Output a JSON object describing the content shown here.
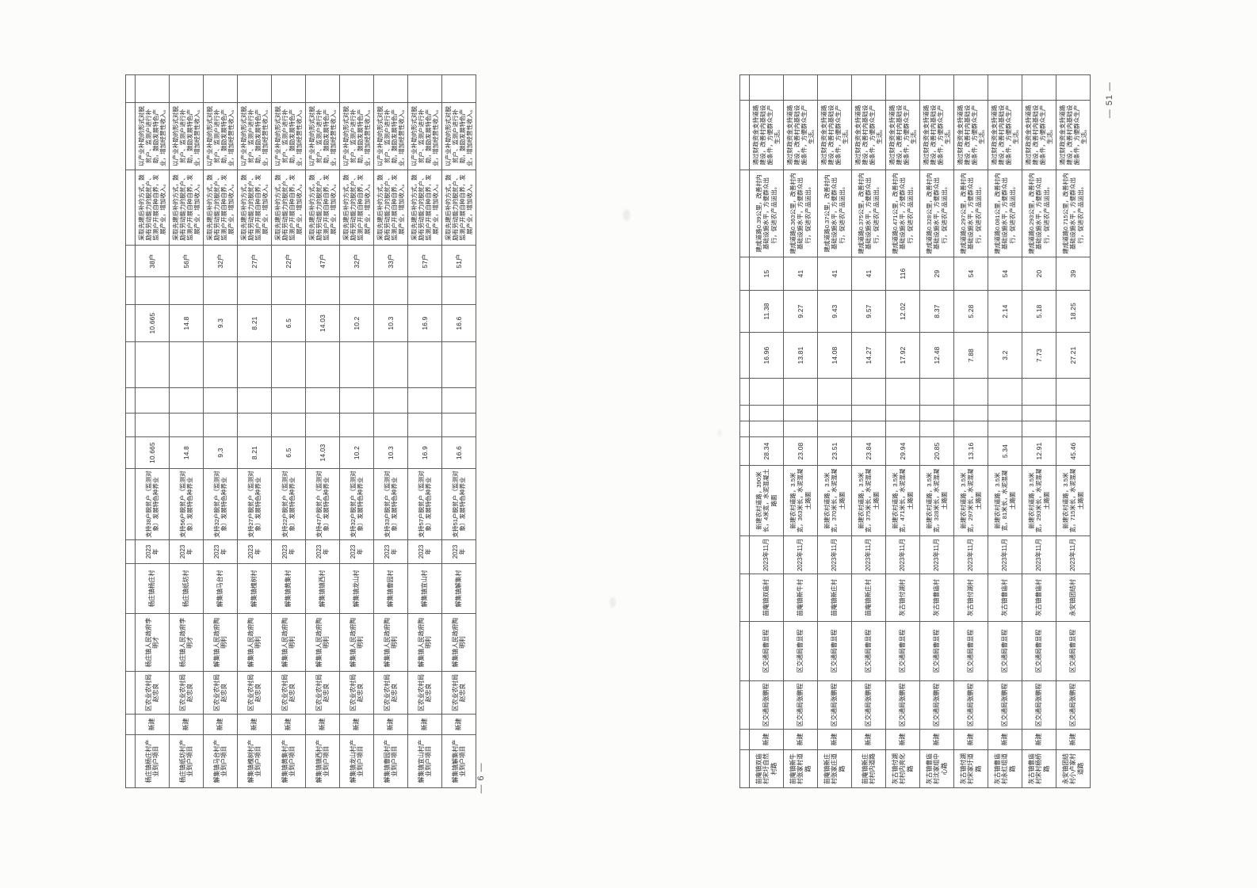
{
  "left": {
    "page_number": "— 6 —",
    "rows": [
      [
        "杨庄镇杨庄村产业到户项目",
        "新建",
        "区农业农村局赵忠良",
        "杨庄镇人民政府李明才",
        "杨庄镇杨庄村",
        "2023年",
        "支持38户脱贫户（监测对象）发展特色种养业",
        "10.665",
        "",
        "",
        "",
        "10.665",
        "",
        "38户",
        "采取先建后补的方式，鼓励有劳动能力的脱贫户、监测户开展自种自养，发展产业，增加收入。",
        "以产业补助的形式对脱贫户、监测户进行补助，鼓励发展特色产业，增加经营性收入。",
        ""
      ],
      [
        "杨庄镇纸坊村产业到户项目",
        "新建",
        "区农业农村局赵忠良",
        "杨庄镇人民政府李明才",
        "杨庄镇纸坊村",
        "2023年",
        "支持56户脱贫户（监测对象）发展特色种养业",
        "14.8",
        "",
        "",
        "",
        "14.8",
        "",
        "56户",
        "采取先建后补的方式，鼓励有劳动能力的脱贫户、监测户开展自种自养，发展产业，增加收入。",
        "以产业补助的形式对脱贫户、监测户进行补助，鼓励发展特色产业，增加经营性收入。",
        ""
      ],
      [
        "解集镇马台村产业到户项目",
        "新建",
        "区农业农村局赵忠良",
        "解集镇人民政府陶明利",
        "解集镇马台村",
        "2023年",
        "支持32户脱贫户（监测对象）发展特色种养业",
        "9.3",
        "",
        "",
        "",
        "9.3",
        "",
        "32户",
        "采取先建后补的方式，鼓励有劳动能力的脱贫户、监测户开展自种自养，发展产业，增加收入。",
        "以产业补助的形式对脱贫户、监测户进行补助，鼓励发展特色产业，增加经营性收入。",
        ""
      ],
      [
        "解集镇槐树村产业到户项目",
        "新建",
        "区农业农村局赵忠良",
        "解集镇人民政府陶明利",
        "解集镇槐树村",
        "2023年",
        "支持27户脱贫户（监测对象）发展特色种养业",
        "8.21",
        "",
        "",
        "",
        "8.21",
        "",
        "27户",
        "采取先建后补的方式，鼓励有劳动能力的脱贫户、监测户开展自种自养，发展产业，增加收入。",
        "以产业补助的形式对脱贫户、监测户进行补助，鼓励发展特色产业，增加经营性收入。",
        ""
      ],
      [
        "解集镇黄集村产业到户项目",
        "新建",
        "区农业农村局赵忠良",
        "解集镇人民政府陶明利",
        "解集镇黄集村",
        "2023年",
        "支持22户脱贫户（监测对象）发展特色种养业",
        "6.5",
        "",
        "",
        "",
        "6.5",
        "",
        "22户",
        "采取先建后补的方式，鼓励有劳动能力的脱贫户、监测户开展自种自养，发展产业，增加收入。",
        "以产业补助的形式对脱贫户、监测户进行补助，鼓励发展特色产业，增加经营性收入。",
        ""
      ],
      [
        "解集镇镇西村产业到户项目",
        "新建",
        "区农业农村局赵忠良",
        "解集镇人民政府陶明利",
        "解集镇镇西村",
        "2023年",
        "支持47户脱贫户（监测对象）发展特色种养业",
        "14.03",
        "",
        "",
        "",
        "14.03",
        "",
        "47户",
        "采取先建后补的方式，鼓励有劳动能力的脱贫户、监测户开展自种自养，发展产业，增加收入。",
        "以产业补助的形式对脱贫户、监测户进行补助，鼓励发展特色产业，增加经营性收入。",
        ""
      ],
      [
        "解集镇龙山村产业到户项目",
        "新建",
        "区农业农村局赵忠良",
        "解集镇人民政府陶明利",
        "解集镇龙山村",
        "2023年",
        "支持32户脱贫户（监测对象）发展特色种养业",
        "10.2",
        "",
        "",
        "",
        "10.2",
        "",
        "32户",
        "采取先建后补的方式，鼓励有劳动能力的脱贫户、监测户开展自种自养，发展产业，增加收入。",
        "以产业补助的形式对脱贫户、监测户进行补助，鼓励发展特色产业，增加经营性收入。",
        ""
      ],
      [
        "解集镇曹园村产业到户项目",
        "新建",
        "区农业农村局赵忠良",
        "解集镇人民政府陶明利",
        "解集镇曹园村",
        "2023年",
        "支持33户脱贫户（监测对象）发展特色种养业",
        "10.3",
        "",
        "",
        "",
        "10.3",
        "",
        "33户",
        "采取先建后补的方式，鼓励有劳动能力的脱贫户、监测户开展自种自养，发展产业，增加收入。",
        "以产业补助的形式对脱贫户、监测户进行补助，鼓励发展特色产业，增加经营性收入。",
        ""
      ],
      [
        "解集镇宜山村产业到户项目",
        "新建",
        "区农业农村局赵忠良",
        "解集镇人民政府陶明利",
        "解集镇宜山村",
        "2023年",
        "支持57户脱贫户（监测对象）发展特色种养业",
        "16.9",
        "",
        "",
        "",
        "16.9",
        "",
        "57户",
        "采取先建后补的方式，鼓励有劳动能力的脱贫户、监测户开展自种自养，发展产业，增加收入。",
        "以产业补助的形式对脱贫户、监测户进行补助，鼓励发展特色产业，增加经营性收入。",
        ""
      ],
      [
        "解集镇解集村产业到户项目",
        "新建",
        "区农业农村局赵忠良",
        "解集镇人民政府陶明利",
        "解集镇解集村",
        "2023年",
        "支持51户脱贫户（监测对象）发展特色种养业",
        "16.6",
        "",
        "",
        "",
        "16.6",
        "",
        "51户",
        "采取先建后补的方式，鼓励有劳动能力的脱贫户、监测户开展自种自养，发展产业，增加收入。",
        "以产业补助的形式对脱贫户、监测户进行补助，鼓励发展特色产业，增加经营性收入。",
        ""
      ]
    ]
  },
  "right": {
    "page_number": "— 51 —",
    "rows": [
      [
        "苗庵镇双庙村宋圩自然村路",
        "新建",
        "区交通局张鹏程",
        "区交通局曹显程",
        "苗庵镇双庙村",
        "2023年11月",
        "新建农村道路，390米长，4米宽，水泥混凝土路面",
        "28.34",
        "",
        "",
        "",
        "16.96",
        "11.38",
        "15",
        "建成道路0.39公里，改善村内基础设施水平，方便群众出行，促进农产品运出。",
        "通过财政资金支持道路建设，改善村内基础设施条件，方便群众生产生活。",
        ""
      ],
      [
        "苗庵镇新牛村张家村道路",
        "新建",
        "区交通局张鹏程",
        "区交通局曹显程",
        "苗庵镇新牛村",
        "2023年11月",
        "新建农村道路，3.5米宽，363米长，水泥混凝土路面",
        "23.08",
        "",
        "",
        "",
        "13.81",
        "9.27",
        "41",
        "建成道路0.363公里，改善村内基础设施水平，方便群众出行，促进农产品运出。",
        "通过财政资金支持道路建设，改善村内基础设施条件，方便群众生产生活。",
        ""
      ],
      [
        "苗庵镇新庄村张家庄道路",
        "新建",
        "区交通局张鹏程",
        "区交通局曹显程",
        "苗庵镇新庄村",
        "2023年11月",
        "新建农村道路，3.5米宽，370米长，水泥混凝土路面",
        "23.51",
        "",
        "",
        "",
        "14.08",
        "9.43",
        "41",
        "建成道路0.37公里，改善村内基础设施水平，方便群众出行，促进农产品运出。",
        "通过财政资金支持道路建设，改善村内基础设施条件，方便群众生产生活。",
        ""
      ],
      [
        "苗庵镇新庄村村内道路",
        "新建",
        "区交通局张鹏程",
        "区交通局曹显程",
        "苗庵镇新庄村",
        "2023年11月",
        "新建农村道路，3.5米宽，375米长，水泥混凝土路面",
        "23.84",
        "",
        "",
        "",
        "14.27",
        "9.57",
        "41",
        "建成道路0.375公里，改善村内基础设施水平，方便群众出行，促进农产品运出。",
        "通过财政资金支持道路建设，改善村内基础设施条件，方便群众生产生活。",
        ""
      ],
      [
        "灰古镇付湖村村内亮化路",
        "新建",
        "区交通局张鹏程",
        "区交通局曹显程",
        "灰古镇付湖村",
        "2023年11月",
        "新建农村道路，3.5米宽，471米长，水泥混凝土路面",
        "29.94",
        "",
        "",
        "",
        "17.92",
        "12.02",
        "116",
        "建成道路0.471公里，改善村内基础设施水平，方便群众出行，促进农产品运出。",
        "通过财政资金支持道路建设，改善村内基础设施条件，方便群众生产生活。",
        ""
      ],
      [
        "灰古镇曹庙村沈家组中心路",
        "新建",
        "区交通局张鹏程",
        "区交通局曹显程",
        "灰古镇曹庙村",
        "2023年11月",
        "新建农村道路，3.5米宽，328米长，水泥混凝土路面",
        "20.85",
        "",
        "",
        "",
        "12.48",
        "8.37",
        "29",
        "建成道路0.328公里，改善村内基础设施水平，方便群众出行，促进农产品运出。",
        "通过财政资金支持道路建设，改善村内基础设施条件，方便群众生产生活。",
        ""
      ],
      [
        "灰古镇付湖村宋家圩道路",
        "新建",
        "区交通局张鹏程",
        "区交通局曹显程",
        "灰古镇付湖村",
        "2023年11月",
        "新建农村道路，3.5米宽，297米长，水泥混凝土路面",
        "13.16",
        "",
        "",
        "",
        "7.88",
        "5.28",
        "54",
        "建成道路0.297公里，改善村内基础设施水平，方便群众出行，促进农产品运出。",
        "通过财政资金支持道路建设，改善村内基础设施条件，方便群众生产生活。",
        ""
      ],
      [
        "灰古镇曹庙村永红组道路",
        "新建",
        "区交通局张鹏程",
        "区交通局曹显程",
        "灰古镇曹庙村",
        "2023年11月",
        "新建农村道路，3.5米宽，81米长，水泥混凝土路面",
        "5.34",
        "",
        "",
        "",
        "3.2",
        "2.14",
        "54",
        "建成道路0.081公里，改善村内基础设施水平，方便群众出行，促进农产品运出。",
        "通过财政资金支持道路建设，改善村内基础设施条件，方便群众生产生活。",
        ""
      ],
      [
        "灰古镇曹庙村宋村杨桥路",
        "新建",
        "区交通局张鹏程",
        "区交通局曹显程",
        "灰古镇曹庙村",
        "2023年11月",
        "新建农村道路，3.5米宽，293米长，水泥混凝土路面",
        "12.91",
        "",
        "",
        "",
        "7.73",
        "5.18",
        "20",
        "建成道路0.293公里，改善村内基础设施水平，方便群众出行，促进农产品运出。",
        "通过财政资金支持道路建设，改善村内基础设施条件，方便群众生产生活。",
        ""
      ],
      [
        "永安镇团结村小卢家村道路",
        "新建",
        "区交通局张鹏程",
        "区交通局曹显程",
        "永安镇团结村",
        "2023年11月",
        "新建农村道路，3.5米宽，715米长，水泥混凝土路面",
        "45.46",
        "",
        "",
        "",
        "27.21",
        "18.25",
        "39",
        "建成道路0.715公里，改善村内基础设施水平，方便群众出行，促进农产品运出。",
        "通过财政资金支持道路建设，改善村内基础设施条件，方便群众生产生活。",
        ""
      ]
    ]
  },
  "colors": {
    "ink": "#3d3d3d",
    "table_border": "#5d5d5d",
    "paper": "#ffffff"
  }
}
